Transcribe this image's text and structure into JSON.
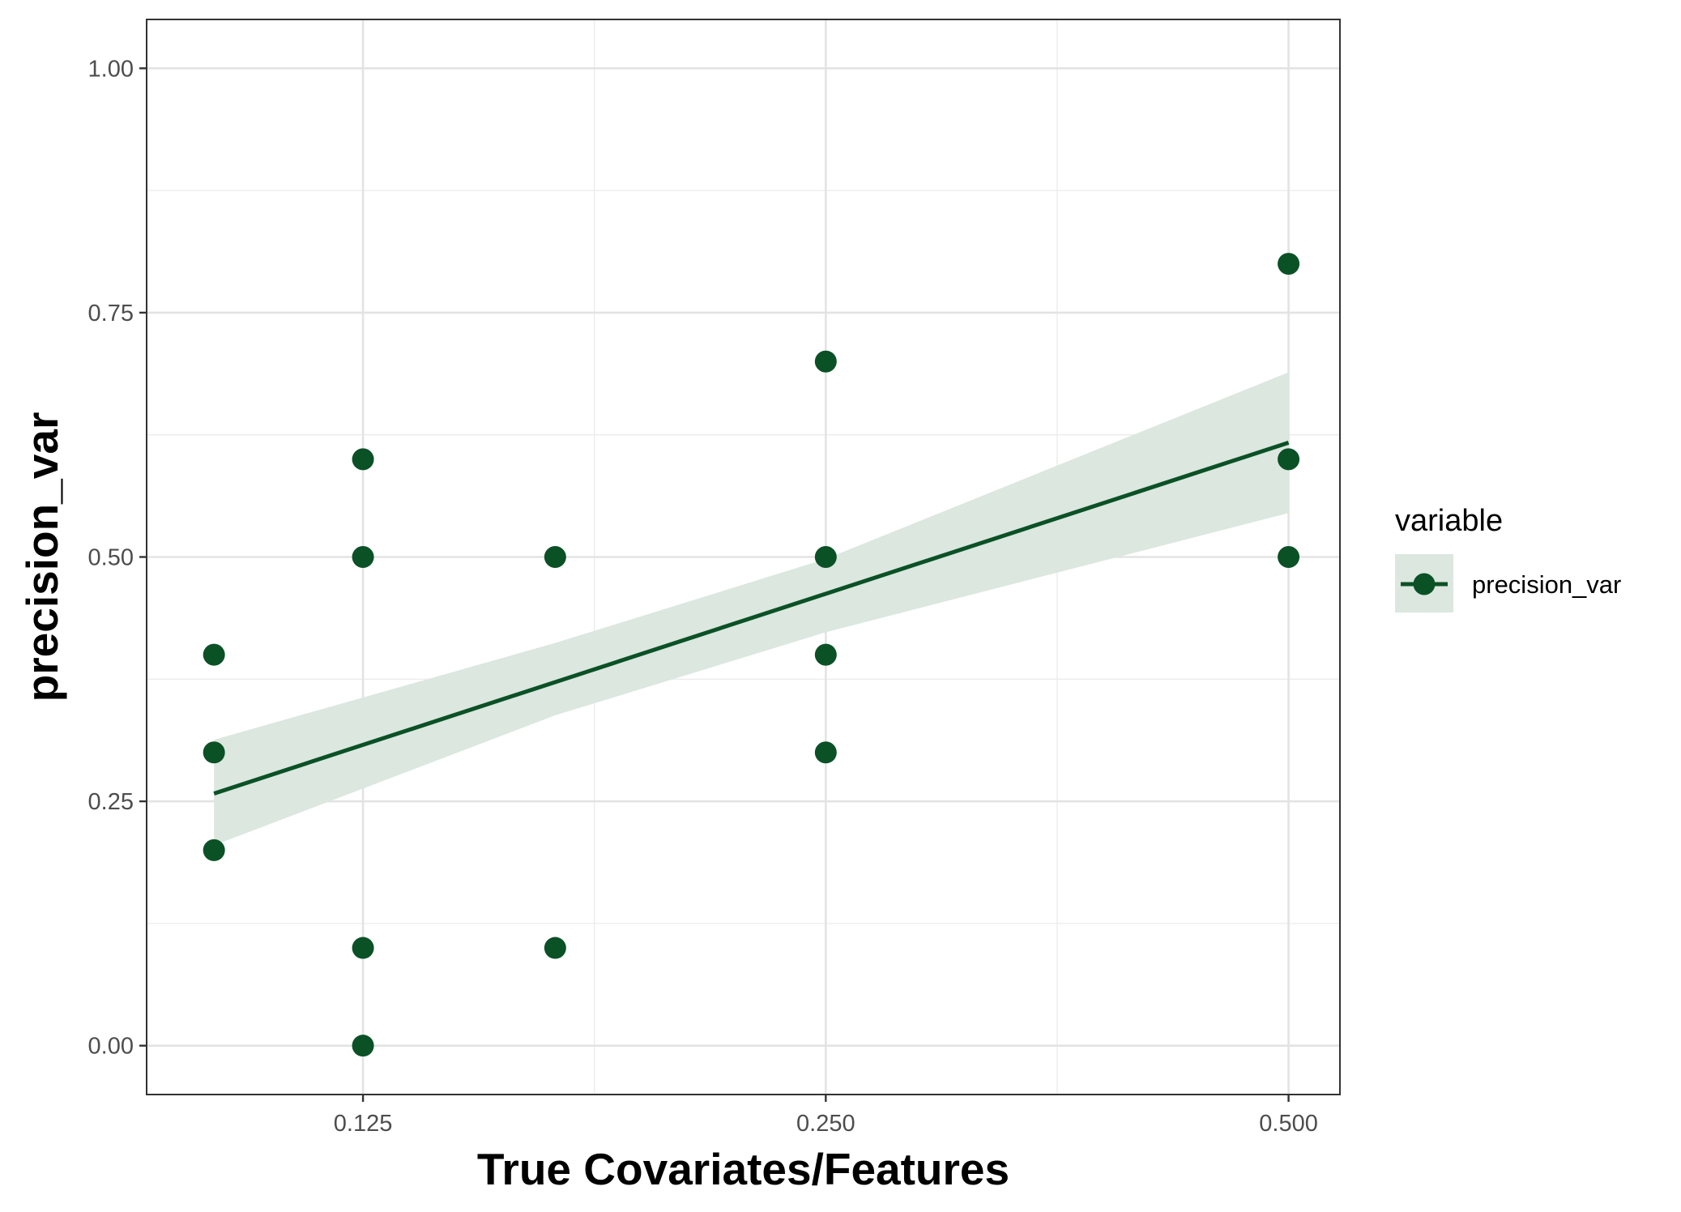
{
  "chart_data": {
    "type": "scatter",
    "title": "",
    "xlabel": "True Covariates/Features",
    "ylabel": "precision_var",
    "x_scale": "log2",
    "xlim": [
      0.0904,
      0.54
    ],
    "ylim": [
      -0.05,
      1.05
    ],
    "x_ticks": [
      0.125,
      0.25,
      0.5
    ],
    "x_tick_labels": [
      "0.125",
      "0.250",
      "0.500"
    ],
    "y_ticks": [
      0,
      0.25,
      0.5,
      0.75,
      1.0
    ],
    "y_tick_labels": [
      "0.00",
      "0.25",
      "0.50",
      "0.75",
      "1.00"
    ],
    "grid": true,
    "legend_position": "right",
    "legend_title": "variable",
    "series": [
      {
        "name": "precision_var",
        "color": "#0b5126",
        "points": [
          {
            "x": 0.1,
            "y": 0.4
          },
          {
            "x": 0.1,
            "y": 0.3
          },
          {
            "x": 0.1,
            "y": 0.2
          },
          {
            "x": 0.125,
            "y": 0.6
          },
          {
            "x": 0.125,
            "y": 0.5
          },
          {
            "x": 0.125,
            "y": 0.1
          },
          {
            "x": 0.125,
            "y": 0.0
          },
          {
            "x": 0.1667,
            "y": 0.5
          },
          {
            "x": 0.1667,
            "y": 0.1
          },
          {
            "x": 0.25,
            "y": 0.7
          },
          {
            "x": 0.25,
            "y": 0.5
          },
          {
            "x": 0.25,
            "y": 0.4
          },
          {
            "x": 0.25,
            "y": 0.3
          },
          {
            "x": 0.5,
            "y": 0.8
          },
          {
            "x": 0.5,
            "y": 0.6
          },
          {
            "x": 0.5,
            "y": 0.5
          }
        ],
        "fit_line": {
          "x": [
            0.1,
            0.5
          ],
          "y": [
            0.258,
            0.617
          ]
        },
        "confidence_band": {
          "x": [
            0.1,
            0.1667,
            0.25,
            0.5
          ],
          "lower": [
            0.205,
            0.338,
            0.423,
            0.545
          ],
          "upper": [
            0.313,
            0.412,
            0.498,
            0.689
          ]
        }
      }
    ],
    "band_color": "#dbe7df",
    "line_color": "#0b5126"
  }
}
